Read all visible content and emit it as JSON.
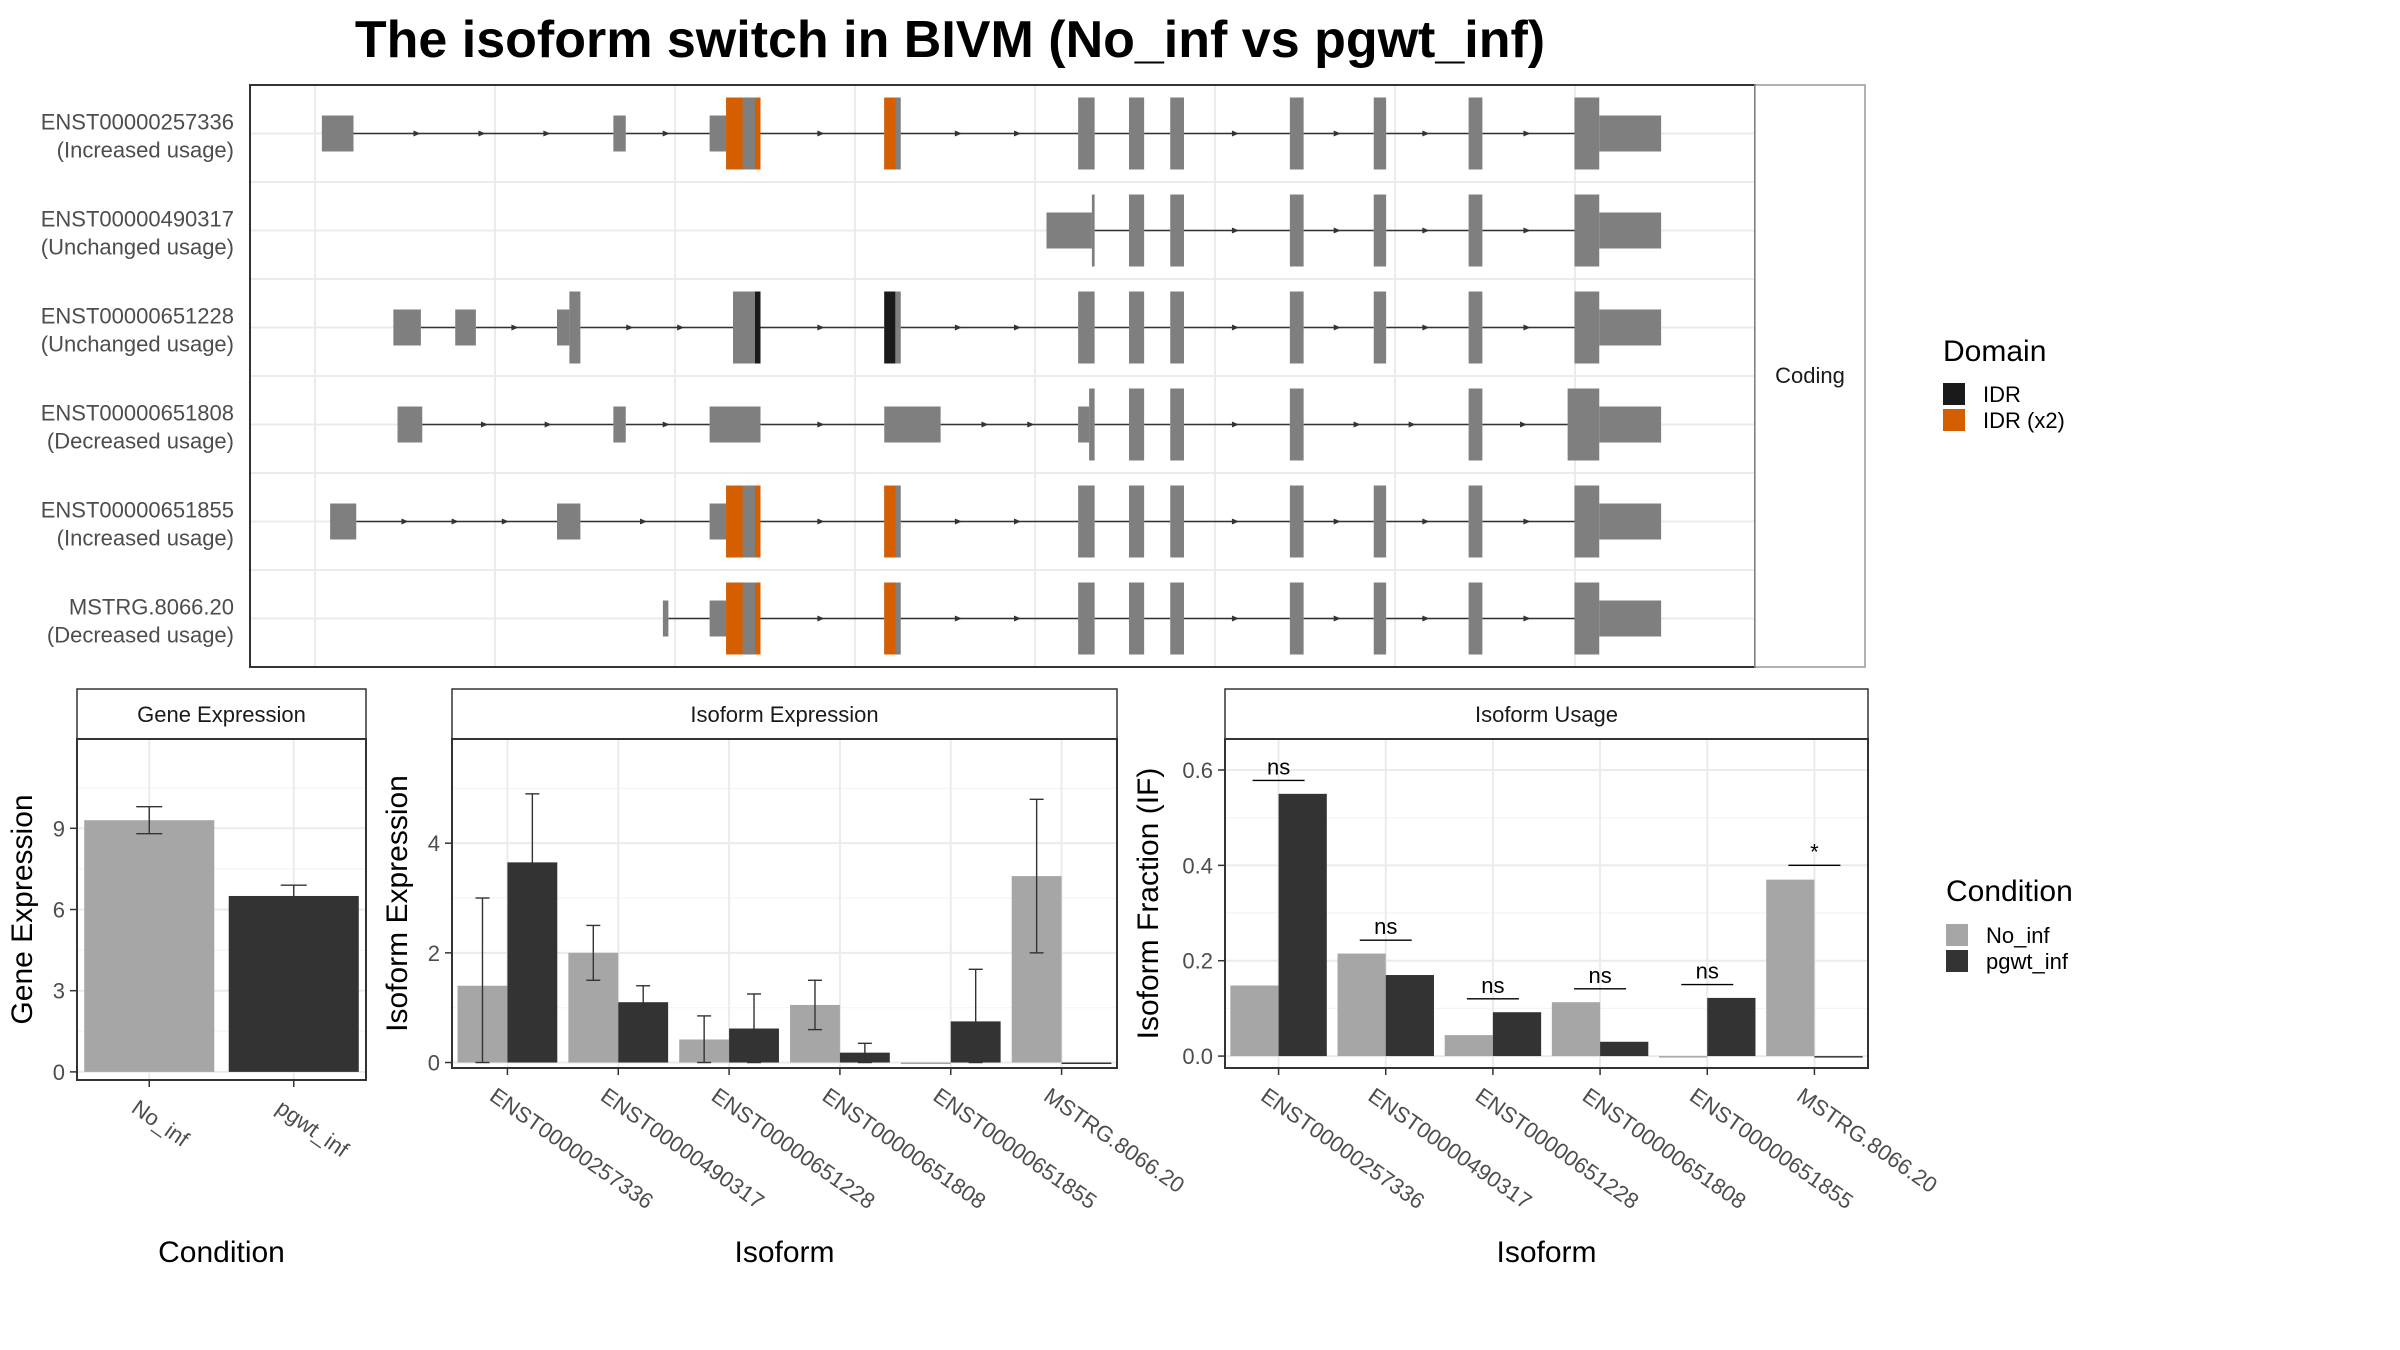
{
  "figure": {
    "title": "The isoform switch in BIVM (No_inf vs pgwt_inf)"
  },
  "colors": {
    "exon": "#7f7f7f",
    "idr": "#1a1a1a",
    "idr_x2": "#d55e00",
    "no_inf": "#a6a6a6",
    "pgwt_inf": "#333333",
    "panel_border": "#333333",
    "strip_fill": "#ffffff",
    "grid": "#ebebeb"
  },
  "chart_data": [
    {
      "type": "gene_structure",
      "panel": "isoform structure",
      "strip_label": "Coding",
      "x_range": [
        0,
        1000
      ],
      "legend": {
        "title": "Domain",
        "items": [
          {
            "label": "IDR",
            "color": "#1a1a1a"
          },
          {
            "label": "IDR (x2)",
            "color": "#d55e00"
          }
        ]
      },
      "isoforms": [
        {
          "id": "ENST00000257336",
          "usage": "(Increased usage)",
          "exons": [
            [
              5,
              28,
              "u"
            ],
            [
              217,
              226,
              "u"
            ],
            [
              287,
              299,
              "u"
            ],
            [
              299,
              324,
              "c"
            ],
            [
              414,
              426,
              "c"
            ],
            [
              555,
              567,
              "c"
            ],
            [
              592,
              603,
              "c"
            ],
            [
              622,
              632,
              "c"
            ],
            [
              709,
              719,
              "c"
            ],
            [
              770,
              779,
              "c"
            ],
            [
              839,
              849,
              "c"
            ],
            [
              916,
              934,
              "c"
            ],
            [
              934,
              979,
              "u"
            ]
          ],
          "domains": [
            [
              299,
              311,
              "IDR (x2)"
            ],
            [
              320,
              324,
              "IDR (x2)"
            ],
            [
              414,
              422,
              "IDR (x2)"
            ]
          ]
        },
        {
          "id": "ENST00000490317",
          "usage": "(Unchanged usage)",
          "exons": [
            [
              532,
              565,
              "u"
            ],
            [
              565,
              567,
              "c"
            ],
            [
              592,
              603,
              "c"
            ],
            [
              622,
              632,
              "c"
            ],
            [
              709,
              719,
              "c"
            ],
            [
              770,
              779,
              "c"
            ],
            [
              839,
              849,
              "c"
            ],
            [
              916,
              934,
              "c"
            ],
            [
              934,
              979,
              "u"
            ]
          ],
          "domains": []
        },
        {
          "id": "ENST00000651228",
          "usage": "(Unchanged usage)",
          "exons": [
            [
              57,
              77,
              "u"
            ],
            [
              102,
              117,
              "u"
            ],
            [
              176,
              185,
              "u"
            ],
            [
              185,
              193,
              "c"
            ],
            [
              304,
              324,
              "c"
            ],
            [
              414,
              426,
              "c"
            ],
            [
              555,
              567,
              "c"
            ],
            [
              592,
              603,
              "c"
            ],
            [
              622,
              632,
              "c"
            ],
            [
              709,
              719,
              "c"
            ],
            [
              770,
              779,
              "c"
            ],
            [
              839,
              849,
              "c"
            ],
            [
              916,
              934,
              "c"
            ],
            [
              934,
              979,
              "u"
            ]
          ],
          "domains": [
            [
              320,
              324,
              "IDR"
            ],
            [
              414,
              422,
              "IDR"
            ]
          ]
        },
        {
          "id": "ENST00000651808",
          "usage": "(Decreased usage)",
          "exons": [
            [
              60,
              78,
              "u"
            ],
            [
              217,
              226,
              "u"
            ],
            [
              287,
              324,
              "u"
            ],
            [
              414,
              455,
              "u"
            ],
            [
              555,
              563,
              "u"
            ],
            [
              563,
              567,
              "c"
            ],
            [
              592,
              603,
              "c"
            ],
            [
              622,
              632,
              "c"
            ],
            [
              709,
              719,
              "c"
            ],
            [
              839,
              849,
              "c"
            ],
            [
              911,
              934,
              "c"
            ],
            [
              934,
              979,
              "u"
            ]
          ],
          "domains": []
        },
        {
          "id": "ENST00000651855",
          "usage": "(Increased usage)",
          "exons": [
            [
              11,
              30,
              "u"
            ],
            [
              176,
              193,
              "u"
            ],
            [
              287,
              299,
              "u"
            ],
            [
              299,
              324,
              "c"
            ],
            [
              414,
              426,
              "c"
            ],
            [
              555,
              567,
              "c"
            ],
            [
              592,
              603,
              "c"
            ],
            [
              622,
              632,
              "c"
            ],
            [
              709,
              719,
              "c"
            ],
            [
              770,
              779,
              "c"
            ],
            [
              839,
              849,
              "c"
            ],
            [
              916,
              934,
              "c"
            ],
            [
              934,
              979,
              "u"
            ]
          ],
          "domains": [
            [
              299,
              311,
              "IDR (x2)"
            ],
            [
              320,
              324,
              "IDR (x2)"
            ],
            [
              414,
              422,
              "IDR (x2)"
            ]
          ]
        },
        {
          "id": "MSTRG.8066.20",
          "usage": "(Decreased usage)",
          "exons": [
            [
              253,
              257,
              "u"
            ],
            [
              287,
              299,
              "u"
            ],
            [
              299,
              324,
              "c"
            ],
            [
              414,
              426,
              "c"
            ],
            [
              555,
              567,
              "c"
            ],
            [
              592,
              603,
              "c"
            ],
            [
              622,
              632,
              "c"
            ],
            [
              709,
              719,
              "c"
            ],
            [
              770,
              779,
              "c"
            ],
            [
              839,
              849,
              "c"
            ],
            [
              916,
              934,
              "c"
            ],
            [
              934,
              979,
              "u"
            ]
          ],
          "domains": [
            [
              299,
              311,
              "IDR (x2)"
            ],
            [
              320,
              324,
              "IDR (x2)"
            ],
            [
              414,
              422,
              "IDR (x2)"
            ]
          ]
        }
      ]
    },
    {
      "type": "bar",
      "title": "Gene Expression",
      "xlabel": "Condition",
      "ylabel": "Gene Expression",
      "ylim": [
        -0.3,
        12.3
      ],
      "yticks": [
        0,
        3,
        6,
        9
      ],
      "categories": [
        "No_inf",
        "pgwt_inf"
      ],
      "values": [
        9.3,
        6.5
      ],
      "errors": [
        [
          8.8,
          9.8
        ],
        [
          6.2,
          6.9
        ]
      ]
    },
    {
      "type": "bar",
      "title": "Isoform Expression",
      "xlabel": "Isoform",
      "ylabel": "Isoform Expression",
      "ylim": [
        -0.1,
        5.9
      ],
      "yticks": [
        0,
        2,
        4
      ],
      "categories": [
        "ENST00000257336",
        "ENST00000490317",
        "ENST00000651228",
        "ENST00000651808",
        "ENST00000651855",
        "MSTRG.8066.20"
      ],
      "series": [
        {
          "name": "No_inf",
          "values": [
            1.4,
            2.0,
            0.42,
            1.05,
            0.0,
            3.4
          ],
          "errors": [
            [
              0.0,
              3.0
            ],
            [
              1.5,
              2.5
            ],
            [
              0.0,
              0.85
            ],
            [
              0.6,
              1.5
            ],
            null,
            [
              2.0,
              4.8
            ]
          ]
        },
        {
          "name": "pgwt_inf",
          "values": [
            3.65,
            1.1,
            0.62,
            0.18,
            0.75,
            0.0
          ],
          "errors": [
            [
              2.35,
              4.9
            ],
            [
              0.75,
              1.4
            ],
            [
              0.0,
              1.25
            ],
            [
              0.0,
              0.35
            ],
            [
              0.0,
              1.7
            ],
            null
          ]
        }
      ]
    },
    {
      "type": "bar",
      "title": "Isoform Usage",
      "xlabel": "Isoform",
      "ylabel": "Isoform Fraction (IF)",
      "ylim": [
        -0.025,
        0.665
      ],
      "yticks": [
        0.0,
        0.2,
        0.4,
        0.6
      ],
      "ytick_labels": [
        "0.0",
        "0.2",
        "0.4",
        "0.6"
      ],
      "categories": [
        "ENST00000257336",
        "ENST00000490317",
        "ENST00000651228",
        "ENST00000651808",
        "ENST00000651855",
        "MSTRG.8066.20"
      ],
      "series": [
        {
          "name": "No_inf",
          "values": [
            0.148,
            0.215,
            0.044,
            0.113,
            0.0,
            0.37
          ]
        },
        {
          "name": "pgwt_inf",
          "values": [
            0.55,
            0.17,
            0.092,
            0.03,
            0.122,
            0.0
          ]
        }
      ],
      "significance": [
        {
          "label": "ns",
          "y": 0.578
        },
        {
          "label": "ns",
          "y": 0.243
        },
        {
          "label": "ns",
          "y": 0.12
        },
        {
          "label": "ns",
          "y": 0.141
        },
        {
          "label": "ns",
          "y": 0.15
        },
        {
          "label": "*",
          "y": 0.4
        }
      ],
      "legend": {
        "title": "Condition",
        "items": [
          {
            "label": "No_inf",
            "color": "#a6a6a6"
          },
          {
            "label": "pgwt_inf",
            "color": "#333333"
          }
        ]
      }
    }
  ]
}
